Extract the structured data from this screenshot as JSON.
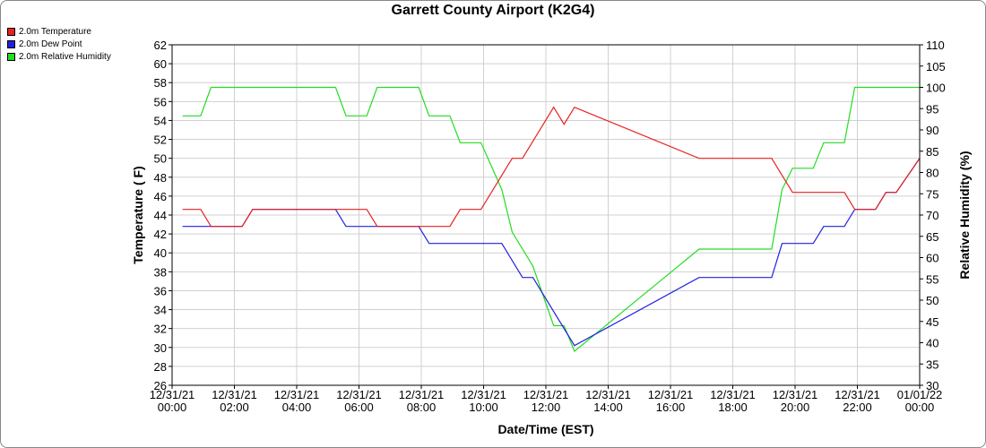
{
  "chart_data": {
    "type": "line",
    "title": "Garrett County Airport (K2G4)",
    "xlabel": "Date/Time (EST)",
    "ylabel_left": "Temperature ( F)",
    "ylabel_right": "Relative Humidity (%)",
    "xlim": [
      "12/31/21 00:00",
      "01/01/22 00:00"
    ],
    "x_ticks": [
      [
        "12/31/21",
        "00:00"
      ],
      [
        "12/31/21",
        "02:00"
      ],
      [
        "12/31/21",
        "04:00"
      ],
      [
        "12/31/21",
        "06:00"
      ],
      [
        "12/31/21",
        "08:00"
      ],
      [
        "12/31/21",
        "10:00"
      ],
      [
        "12/31/21",
        "12:00"
      ],
      [
        "12/31/21",
        "14:00"
      ],
      [
        "12/31/21",
        "16:00"
      ],
      [
        "12/31/21",
        "18:00"
      ],
      [
        "12/31/21",
        "20:00"
      ],
      [
        "12/31/21",
        "22:00"
      ],
      [
        "01/01/22",
        "00:00"
      ]
    ],
    "ylim_left": [
      26,
      62
    ],
    "y_ticks_left": [
      26,
      28,
      30,
      32,
      34,
      36,
      38,
      40,
      42,
      44,
      46,
      48,
      50,
      52,
      54,
      56,
      58,
      60,
      62
    ],
    "ylim_right": [
      30,
      110
    ],
    "y_ticks_right": [
      30,
      35,
      40,
      45,
      50,
      55,
      60,
      65,
      70,
      75,
      80,
      85,
      90,
      95,
      100,
      105,
      110
    ],
    "grid": true,
    "legend_position": "top-left",
    "series": [
      {
        "name": "2.0m Temperature",
        "color": "#e82020",
        "axis": "left",
        "points": [
          [
            "12/31/21 00:20",
            44.6
          ],
          [
            "12/31/21 00:55",
            44.6
          ],
          [
            "12/31/21 01:15",
            42.8
          ],
          [
            "12/31/21 02:15",
            42.8
          ],
          [
            "12/31/21 02:35",
            44.6
          ],
          [
            "12/31/21 05:15",
            44.6
          ],
          [
            "12/31/21 06:15",
            44.6
          ],
          [
            "12/31/21 06:35",
            42.8
          ],
          [
            "12/31/21 07:55",
            42.8
          ],
          [
            "12/31/21 08:55",
            42.8
          ],
          [
            "12/31/21 09:15",
            44.6
          ],
          [
            "12/31/21 09:55",
            44.6
          ],
          [
            "12/31/21 10:55",
            50.0
          ],
          [
            "12/31/21 11:15",
            50.0
          ],
          [
            "12/31/21 12:15",
            55.4
          ],
          [
            "12/31/21 12:35",
            53.6
          ],
          [
            "12/31/21 12:55",
            55.4
          ],
          [
            "12/31/21 16:55",
            50.0
          ],
          [
            "12/31/21 19:15",
            50.0
          ],
          [
            "12/31/21 19:55",
            46.4
          ],
          [
            "12/31/21 21:35",
            46.4
          ],
          [
            "12/31/21 21:55",
            44.6
          ],
          [
            "12/31/21 22:35",
            44.6
          ],
          [
            "12/31/21 22:55",
            46.4
          ],
          [
            "12/31/21 23:15",
            46.4
          ],
          [
            "01/01/22 00:00",
            50.0
          ]
        ]
      },
      {
        "name": "2.0m Dew Point",
        "color": "#2020e0",
        "axis": "left",
        "points": [
          [
            "12/31/21 00:20",
            42.8
          ],
          [
            "12/31/21 02:15",
            42.8
          ],
          [
            "12/31/21 02:35",
            44.6
          ],
          [
            "12/31/21 05:15",
            44.6
          ],
          [
            "12/31/21 05:35",
            42.8
          ],
          [
            "12/31/21 07:55",
            42.8
          ],
          [
            "12/31/21 08:15",
            41.0
          ],
          [
            "12/31/21 10:35",
            41.0
          ],
          [
            "12/31/21 11:15",
            37.4
          ],
          [
            "12/31/21 11:35",
            37.4
          ],
          [
            "12/31/21 12:55",
            30.2
          ],
          [
            "12/31/21 16:55",
            37.4
          ],
          [
            "12/31/21 19:15",
            37.4
          ],
          [
            "12/31/21 19:35",
            41.0
          ],
          [
            "12/31/21 20:35",
            41.0
          ],
          [
            "12/31/21 20:55",
            42.8
          ],
          [
            "12/31/21 21:35",
            42.8
          ],
          [
            "12/31/21 21:55",
            44.6
          ],
          [
            "12/31/21 22:35",
            44.6
          ],
          [
            "12/31/21 22:55",
            46.4
          ],
          [
            "12/31/21 23:15",
            46.4
          ],
          [
            "01/01/22 00:00",
            50.0
          ]
        ]
      },
      {
        "name": "2.0m Relative Humidity",
        "color": "#22dd22",
        "axis": "right",
        "points": [
          [
            "12/31/21 00:20",
            93.3
          ],
          [
            "12/31/21 00:55",
            93.3
          ],
          [
            "12/31/21 01:15",
            100
          ],
          [
            "12/31/21 05:15",
            100
          ],
          [
            "12/31/21 05:35",
            93.3
          ],
          [
            "12/31/21 06:15",
            93.3
          ],
          [
            "12/31/21 06:35",
            100
          ],
          [
            "12/31/21 07:55",
            100
          ],
          [
            "12/31/21 08:15",
            93.3
          ],
          [
            "12/31/21 08:55",
            93.3
          ],
          [
            "12/31/21 09:15",
            87.0
          ],
          [
            "12/31/21 09:55",
            87.0
          ],
          [
            "12/31/21 10:35",
            76.0
          ],
          [
            "12/31/21 10:55",
            66.0
          ],
          [
            "12/31/21 11:35",
            58.0
          ],
          [
            "12/31/21 12:15",
            44.0
          ],
          [
            "12/31/21 12:35",
            44.0
          ],
          [
            "12/31/21 12:55",
            38.0
          ],
          [
            "12/31/21 16:55",
            62.0
          ],
          [
            "12/31/21 19:15",
            62.0
          ],
          [
            "12/31/21 19:35",
            76.0
          ],
          [
            "12/31/21 19:55",
            81.0
          ],
          [
            "12/31/21 20:35",
            81.0
          ],
          [
            "12/31/21 20:55",
            87.0
          ],
          [
            "12/31/21 21:35",
            87.0
          ],
          [
            "12/31/21 21:55",
            100
          ],
          [
            "01/01/22 00:00",
            100
          ]
        ]
      }
    ]
  }
}
